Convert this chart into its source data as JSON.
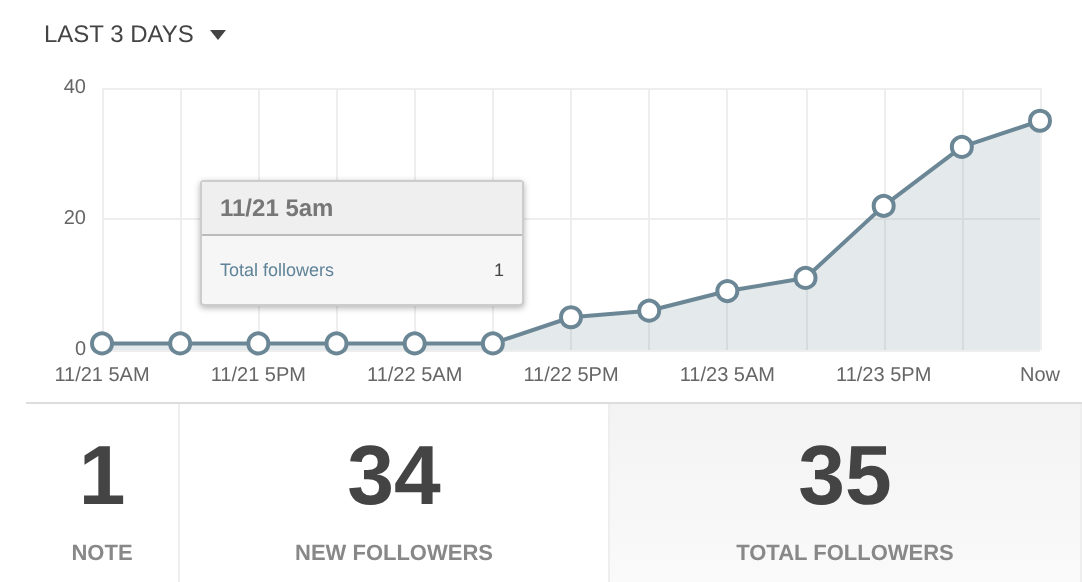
{
  "chart_data": {
    "type": "area",
    "title": "LAST 3 DAYS",
    "categories": [
      "11/21 5AM",
      null,
      "11/21 5PM",
      null,
      "11/22 5AM",
      null,
      "11/22 5PM",
      null,
      "11/23 5AM",
      null,
      "11/23 5PM",
      null,
      "Now"
    ],
    "values": [
      1,
      1,
      1,
      1,
      1,
      1,
      5,
      6,
      9,
      11,
      22,
      31,
      35
    ],
    "color": "#6b8796",
    "ylim": [
      0,
      40
    ],
    "yticks": [
      0,
      20,
      40
    ],
    "grid": true,
    "marker": "circle",
    "annotations": [
      "11/21 5am",
      "Total followers",
      "1",
      "1",
      "NOTE",
      "34",
      "NEW FOLLOWERS",
      "35",
      "TOTAL FOLLOWERS"
    ]
  }
}
